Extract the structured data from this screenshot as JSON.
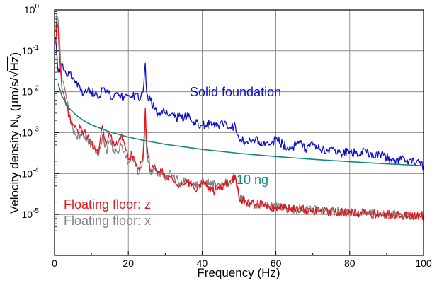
{
  "chart_data": {
    "type": "line",
    "title": "",
    "xlabel": "Frequency (Hz)",
    "ylabel": {
      "main": "Velocity density N",
      "sub": "v",
      "unit_open": " (μm/s/",
      "radical_symbol": "√",
      "radicand": "Hz",
      "unit_close": ")"
    },
    "xlim": [
      0,
      100
    ],
    "ylim": [
      1e-06,
      1
    ],
    "yscale": "log",
    "grid": true,
    "x_ticks": [
      "0",
      "20",
      "40",
      "60",
      "80",
      "100"
    ],
    "y_ticks": [
      {
        "base": "10",
        "exp": "0"
      },
      {
        "base": "10",
        "exp": "-1"
      },
      {
        "base": "10",
        "exp": "-2"
      },
      {
        "base": "10",
        "exp": "-3"
      },
      {
        "base": "10",
        "exp": "-4"
      },
      {
        "base": "10",
        "exp": "-5"
      }
    ],
    "annotations": {
      "solid": {
        "text": "Solid foundation",
        "color": "#1010c8"
      },
      "ng": {
        "text": "10 ng",
        "color": "#138a80"
      },
      "floor_z": {
        "text": "Floating floor: z",
        "color": "#e8141c"
      },
      "floor_x": {
        "text": "Floating floor: x",
        "color": "#808080"
      }
    },
    "series": [
      {
        "key": "solid_foundation",
        "color": "#1010c8",
        "x": [
          0.3,
          1,
          2,
          3,
          4,
          5,
          7,
          8,
          9,
          10,
          11,
          12,
          13,
          14,
          15,
          16,
          17,
          18,
          19,
          20,
          21,
          22,
          23,
          24,
          24.6,
          25,
          26,
          27,
          28,
          29,
          30,
          31,
          32,
          33,
          34,
          35,
          36,
          37,
          38,
          40,
          42,
          44,
          46,
          48,
          49,
          50,
          52,
          54,
          56,
          58,
          60,
          62,
          64,
          66,
          68,
          70,
          72,
          74,
          76,
          78,
          80,
          82,
          84,
          86,
          88,
          90,
          92,
          94,
          96,
          98,
          99,
          100
        ],
        "y": [
          0.22,
          0.03,
          0.05,
          0.03,
          0.028,
          0.022,
          0.011,
          0.009,
          0.011,
          0.01,
          0.009,
          0.007,
          0.012,
          0.011,
          0.009,
          0.007,
          0.009,
          0.008,
          0.007,
          0.008,
          0.007,
          0.009,
          0.006,
          0.01,
          0.05,
          0.009,
          0.006,
          0.004,
          0.003,
          0.0035,
          0.003,
          0.0025,
          0.003,
          0.0022,
          0.0025,
          0.002,
          0.003,
          0.002,
          0.0018,
          0.0015,
          0.0016,
          0.0014,
          0.0017,
          0.0014,
          0.0015,
          0.0007,
          0.0006,
          0.0007,
          0.0006,
          0.0005,
          0.0007,
          0.0005,
          0.0004,
          0.0006,
          0.0004,
          0.0005,
          0.0004,
          0.00035,
          0.0004,
          0.0003,
          0.00035,
          0.0003,
          0.0004,
          0.00025,
          0.0003,
          0.00025,
          0.0002,
          0.00022,
          0.0002,
          0.00018,
          0.0002,
          0.00015
        ]
      },
      {
        "key": "floating_floor_x",
        "color": "#7f7f7f",
        "x": [
          0.3,
          0.6,
          1,
          1.5,
          2,
          3,
          4,
          5,
          6,
          7,
          8,
          9,
          10,
          11,
          12,
          13,
          14,
          15,
          16,
          17,
          18,
          19,
          20,
          21,
          22,
          23,
          24,
          24.6,
          25,
          26,
          27,
          28,
          29,
          30,
          31,
          32,
          34,
          36,
          38,
          40,
          42,
          44,
          46,
          48,
          49,
          50,
          52,
          54,
          56,
          58,
          60,
          64,
          68,
          72,
          76,
          80,
          84,
          88,
          92,
          96,
          100
        ],
        "y": [
          0.3,
          0.8,
          0.55,
          0.1,
          0.02,
          0.009,
          0.003,
          0.0012,
          0.0008,
          0.0009,
          0.0007,
          0.0007,
          0.0005,
          0.0004,
          0.0003,
          0.0009,
          0.00035,
          0.0006,
          0.0004,
          0.00035,
          0.0005,
          0.00035,
          0.00018,
          0.00025,
          0.00015,
          0.0001,
          0.0002,
          0.0025,
          0.0003,
          0.0001,
          0.00014,
          9e-05,
          0.00012,
          7e-05,
          0.0001,
          9e-05,
          6e-05,
          7e-05,
          5e-05,
          7e-05,
          6e-05,
          5e-05,
          6e-05,
          6e-05,
          8e-05,
          2.5e-05,
          2e-05,
          1.8e-05,
          1.7e-05,
          1.5e-05,
          1.5e-05,
          1.3e-05,
          1.4e-05,
          1.2e-05,
          1.2e-05,
          1.1e-05,
          1.1e-05,
          1e-05,
          1e-05,
          9e-06,
          9.5e-06
        ]
      },
      {
        "key": "floating_floor_z",
        "color": "#e8141c",
        "x": [
          0.3,
          0.6,
          1,
          1.5,
          2,
          3,
          4,
          5,
          6,
          7,
          8,
          9,
          10,
          11,
          12,
          13,
          14,
          15,
          16,
          17,
          18,
          19,
          20,
          21,
          22,
          23,
          24,
          24.6,
          25,
          26,
          27,
          28,
          29,
          30,
          31,
          32,
          34,
          36,
          38,
          40,
          42,
          44,
          46,
          48,
          49,
          50,
          52,
          54,
          56,
          58,
          60,
          64,
          68,
          72,
          76,
          80,
          84,
          88,
          92,
          96,
          100
        ],
        "y": [
          0.15,
          0.5,
          0.35,
          0.05,
          0.012,
          0.005,
          0.0025,
          0.0015,
          0.0012,
          0.0013,
          0.001,
          0.0008,
          0.0006,
          0.0004,
          0.00035,
          0.0015,
          0.0005,
          0.0009,
          0.0006,
          0.0005,
          0.0008,
          0.0005,
          0.00022,
          0.0003,
          0.00018,
          0.00012,
          0.0003,
          0.004,
          0.0005,
          0.00012,
          0.00016,
          0.0001,
          0.00012,
          8e-05,
          9e-05,
          7e-05,
          5e-05,
          6e-05,
          4e-05,
          6e-05,
          4e-05,
          4e-05,
          5e-05,
          7e-05,
          9e-05,
          2.5e-05,
          2e-05,
          1.8e-05,
          1.7e-05,
          1.6e-05,
          1.5e-05,
          1.4e-05,
          1.3e-05,
          1.2e-05,
          1.2e-05,
          1.1e-05,
          1.1e-05,
          1e-05,
          1e-05,
          9.5e-06,
          9e-06
        ]
      },
      {
        "key": "ng_10_reference",
        "color": "#138a80",
        "x": [
          1,
          2,
          4,
          6,
          8,
          10,
          15,
          20,
          25,
          30,
          40,
          50,
          60,
          70,
          80,
          90,
          100
        ],
        "y": [
          0.0156,
          0.0078,
          0.0039,
          0.0026,
          0.00195,
          0.00156,
          0.00104,
          0.00078,
          0.000625,
          0.00052,
          0.00039,
          0.000312,
          0.00026,
          0.000223,
          0.000195,
          0.000173,
          0.000156
        ]
      }
    ]
  }
}
